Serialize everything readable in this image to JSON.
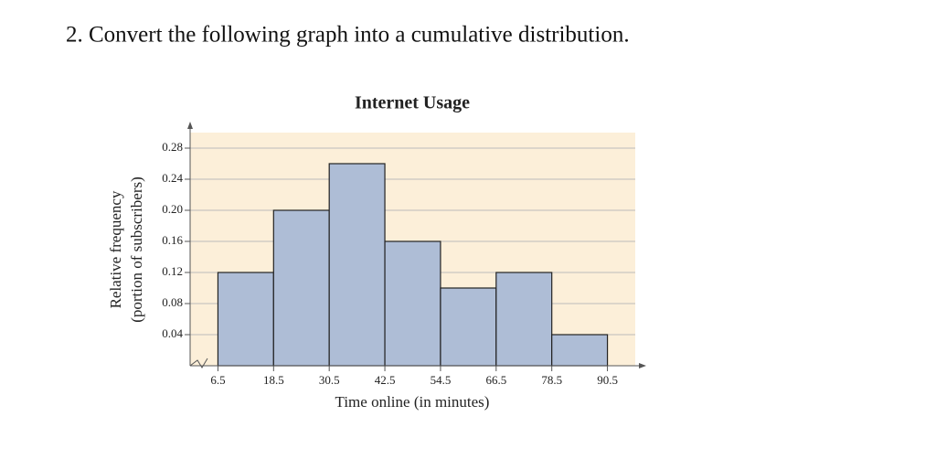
{
  "question": "2. Convert the following graph into a cumulative distribution.",
  "chart_data": {
    "type": "histogram",
    "title": "Internet Usage",
    "xlabel": "Time online (in minutes)",
    "ylabel": [
      "Relative frequency",
      "(portion of subscribers)"
    ],
    "bins": [
      6.5,
      18.5,
      30.5,
      42.5,
      54.5,
      66.5,
      78.5,
      90.5
    ],
    "values": [
      0.12,
      0.2,
      0.26,
      0.16,
      0.1,
      0.12,
      0.04
    ],
    "color": "#aebdd6",
    "background": "#fcefd9",
    "xlim": [
      0.5,
      96.5
    ],
    "ylim": [
      0,
      0.3
    ],
    "yticks": [
      {
        "value": 0.04,
        "label": "0.04"
      },
      {
        "value": 0.08,
        "label": "0.08"
      },
      {
        "value": 0.12,
        "label": "0.12"
      },
      {
        "value": 0.16,
        "label": "0.16"
      },
      {
        "value": 0.2,
        "label": "0.20"
      },
      {
        "value": 0.24,
        "label": "0.24"
      },
      {
        "value": 0.28,
        "label": "0.28"
      }
    ],
    "grid": true
  }
}
